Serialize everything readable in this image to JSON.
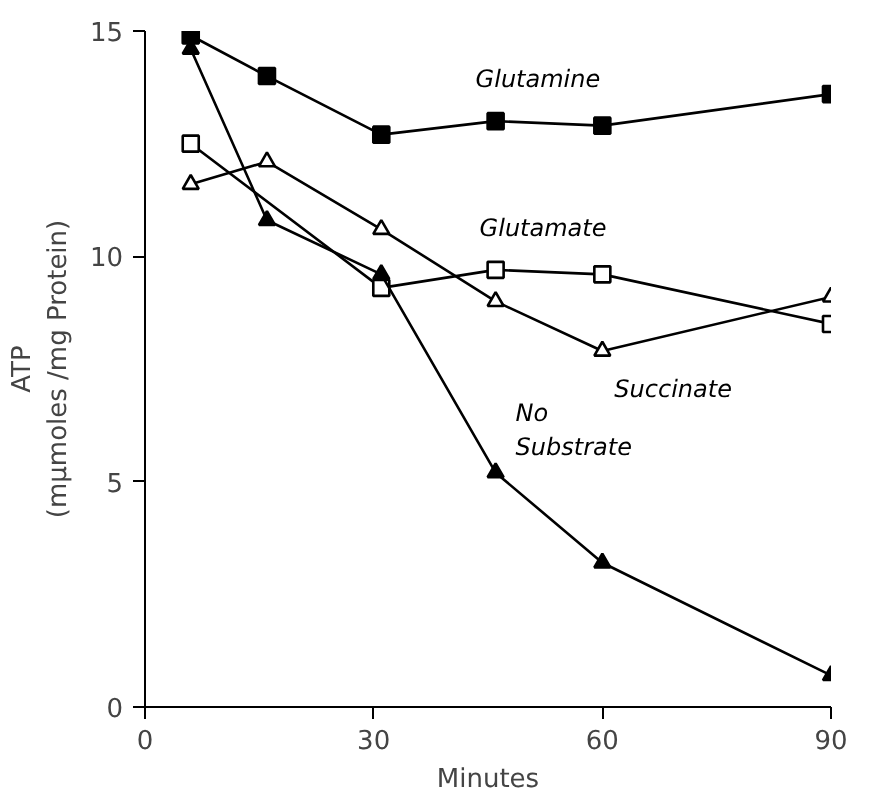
{
  "chart_data": {
    "type": "line",
    "xlabel": "Minutes",
    "ylabel": "ATP\n(mμmoles /mg Protein)",
    "xlim": [
      0,
      90
    ],
    "ylim": [
      0,
      15
    ],
    "xticks": [
      0,
      30,
      60,
      90
    ],
    "yticks": [
      0,
      5,
      10,
      15
    ],
    "grid": false,
    "line_style": "solid",
    "series": [
      {
        "name": "Glutamine",
        "color": "#000000",
        "marker": "square",
        "x": [
          6,
          16,
          31,
          46,
          60,
          90
        ],
        "values": [
          14.9,
          14.0,
          12.7,
          13.0,
          12.9,
          13.6
        ]
      },
      {
        "name": "Glutamate",
        "color": "#000000",
        "marker": "square",
        "x": [
          6,
          31,
          46,
          60,
          90
        ],
        "values": [
          12.5,
          9.3,
          9.7,
          9.6,
          8.5
        ]
      },
      {
        "name": "Succinate",
        "color": "#000000",
        "marker": "triangle",
        "x": [
          6,
          16,
          31,
          46,
          60,
          90
        ],
        "values": [
          11.6,
          12.1,
          10.6,
          9.0,
          7.9,
          9.1
        ]
      },
      {
        "name": "No Substrate",
        "color": "#000000",
        "marker": "triangle",
        "x": [
          6,
          16,
          31,
          46,
          60,
          90
        ],
        "values": [
          14.6,
          10.8,
          9.6,
          5.2,
          3.2,
          0.7
        ]
      }
    ]
  }
}
